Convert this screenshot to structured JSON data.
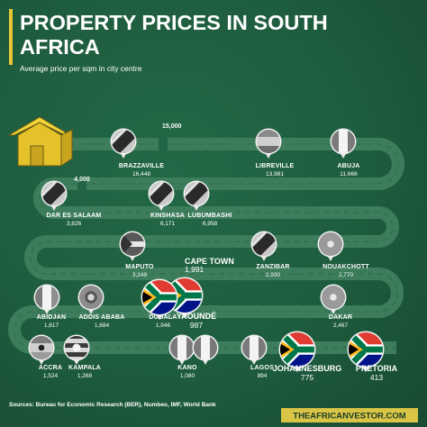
{
  "header": {
    "title_line1": "PROPERTY PRICES IN SOUTH",
    "title_line2": "AFRICA",
    "subtitle": "Average price per sqm in city centre"
  },
  "footer": {
    "sources": "Sources: Bureau for Economic Research (BER), Numbeo, IMF, World Bank",
    "brand": "THEAFRICANVESTOR.COM"
  },
  "colors": {
    "background": "#1e5c3e",
    "road": "#3a7a5a",
    "accent_yellow": "#e8c534",
    "brand_box": "#d9c445"
  },
  "icons": {
    "start": "house-icon",
    "markers": "flag-pin-icon"
  },
  "chart_data": {
    "type": "infographic",
    "unit": "Average price per sqm in city centre",
    "scale_marks": [
      "15,000",
      "4,000"
    ],
    "cities": [
      {
        "name": "BRAZZAVILLE",
        "value": "16,448"
      },
      {
        "name": "LIBREVILLE",
        "value": "13,981"
      },
      {
        "name": "ABUJA",
        "value": "11,666"
      },
      {
        "name": "DAR ES SALAAM",
        "value": "3,826"
      },
      {
        "name": "KINSHASA",
        "value": "6,171"
      },
      {
        "name": "LUBUMBASHI",
        "value": "6,958"
      },
      {
        "name": "MAPUTO",
        "value": "3,249"
      },
      {
        "name": "CAPE TOWN",
        "value": "1,991"
      },
      {
        "name": "ZANZIBAR",
        "value": "2,930"
      },
      {
        "name": "NOUAKCHOTT",
        "value": "2,770"
      },
      {
        "name": "ABIDJAN",
        "value": "1,617"
      },
      {
        "name": "ADDIS ABABA",
        "value": "1,684"
      },
      {
        "name": "DOUALA",
        "value": "1,946"
      },
      {
        "name": "YAOUNDÉ",
        "value": "987"
      },
      {
        "name": "DAKAR",
        "value": "2,467"
      },
      {
        "name": "ACCRA",
        "value": "1,524"
      },
      {
        "name": "KAMPALA",
        "value": "1,268"
      },
      {
        "name": "KANO",
        "value": "1,080"
      },
      {
        "name": "LAGOS",
        "value": "894"
      },
      {
        "name": "JOHANNESBURG",
        "value": "775"
      },
      {
        "name": "PRETORIA",
        "value": "413"
      }
    ]
  }
}
